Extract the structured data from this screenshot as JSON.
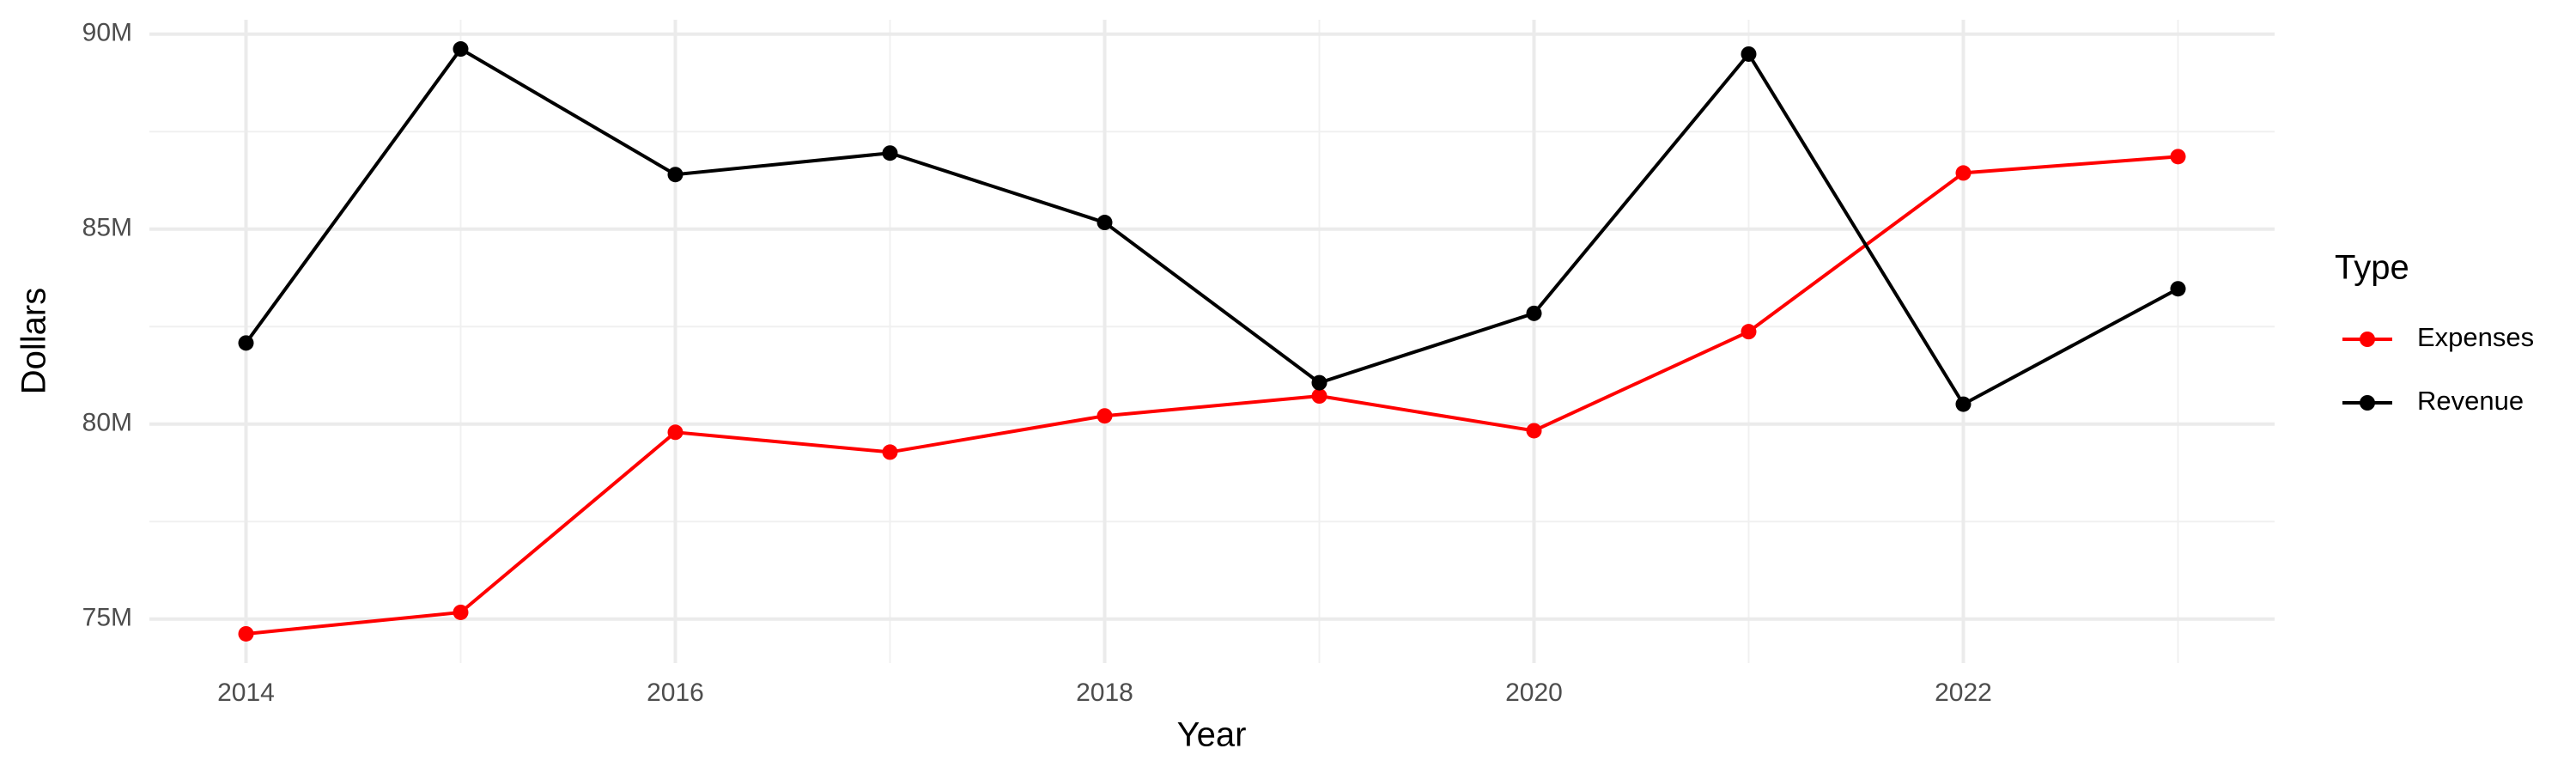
{
  "chart_data": {
    "type": "line",
    "x_label": "Year",
    "y_label": "Dollars",
    "legend_title": "Type",
    "legend_position": "right",
    "grid": true,
    "x": [
      2014,
      2015,
      2016,
      2017,
      2018,
      2019,
      2020,
      2021,
      2022,
      2023
    ],
    "series": [
      {
        "name": "Expenses",
        "color": "#ff0000",
        "values": [
          74620000,
          75170000,
          79790000,
          79280000,
          80210000,
          80720000,
          79830000,
          82370000,
          86440000,
          86860000
        ]
      },
      {
        "name": "Revenue",
        "color": "#000000",
        "values": [
          82080000,
          89620000,
          86400000,
          86950000,
          85170000,
          81060000,
          82840000,
          89490000,
          80510000,
          83470000
        ]
      }
    ],
    "xlim": [
      2013.55,
      2023.45
    ],
    "xticks": [
      2014,
      2016,
      2018,
      2020,
      2022
    ],
    "minor_xticks": [
      2015,
      2017,
      2019,
      2021,
      2023
    ],
    "ylim": [
      73870000,
      90370000
    ],
    "yticks": [
      {
        "value": 75000000,
        "label": "75M"
      },
      {
        "value": 80000000,
        "label": "80M"
      },
      {
        "value": 85000000,
        "label": "85M"
      },
      {
        "value": 90000000,
        "label": "90M"
      }
    ],
    "minor_yticks": [
      77500000,
      82500000,
      87500000
    ]
  }
}
